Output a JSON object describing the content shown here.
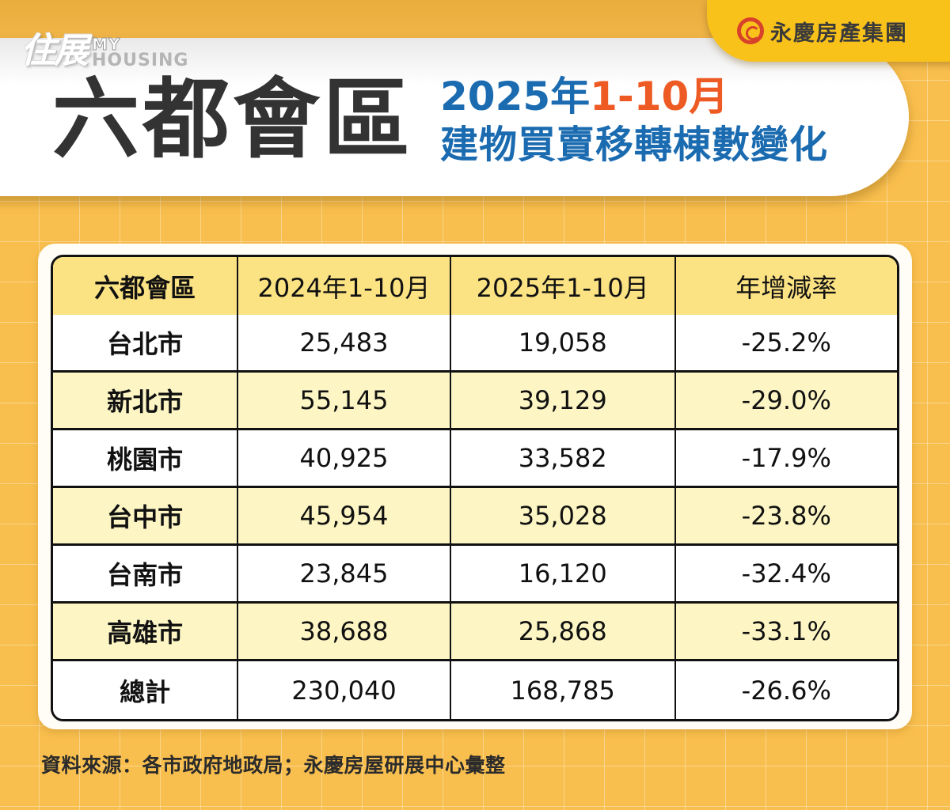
{
  "watermark": {
    "cn": "住展",
    "en_top": "MY",
    "en_bottom": "HOUSING"
  },
  "brand": {
    "name": "永慶房產集團",
    "logo_icon": "yungching-circle-arrow-icon",
    "logo_color": "#d8412a",
    "tab_color": "#f9c21a"
  },
  "header": {
    "title": "六都會區",
    "subtitle_year": "2025年",
    "subtitle_period": "1-10月",
    "subtitle_line2": "建物買賣移轉棟數變化",
    "colors": {
      "title": "#333333",
      "subtitle": "#1b6bb0",
      "accent": "#ee5a24"
    }
  },
  "table": {
    "headers": [
      "六都會區",
      "2024年1-10月",
      "2025年1-10月",
      "年增減率"
    ],
    "rows": [
      [
        "台北市",
        "25,483",
        "19,058",
        "-25.2%"
      ],
      [
        "新北市",
        "55,145",
        "39,129",
        "-29.0%"
      ],
      [
        "桃園市",
        "40,925",
        "33,582",
        "-17.9%"
      ],
      [
        "台中市",
        "45,954",
        "35,028",
        "-23.8%"
      ],
      [
        "台南市",
        "23,845",
        "16,120",
        "-32.4%"
      ],
      [
        "高雄市",
        "38,688",
        "25,868",
        "-33.1%"
      ],
      [
        "總計",
        "230,040",
        "168,785",
        "-26.6%"
      ]
    ]
  },
  "footer": {
    "source": "資料來源：各市政府地政局；永慶房屋研展中心彙整"
  },
  "chart_data": {
    "type": "table",
    "title": "六都會區 2025年1-10月 建物買賣移轉棟數變化",
    "columns": [
      "六都會區",
      "2024年1-10月",
      "2025年1-10月",
      "年增減率"
    ],
    "categories": [
      "台北市",
      "新北市",
      "桃園市",
      "台中市",
      "台南市",
      "高雄市",
      "總計"
    ],
    "series": [
      {
        "name": "2024年1-10月",
        "values": [
          25483,
          55145,
          40925,
          45954,
          23845,
          38688,
          230040
        ]
      },
      {
        "name": "2025年1-10月",
        "values": [
          19058,
          39129,
          33582,
          35028,
          16120,
          25868,
          168785
        ]
      },
      {
        "name": "年增減率(%)",
        "values": [
          -25.2,
          -29.0,
          -17.9,
          -23.8,
          -32.4,
          -33.1,
          -26.6
        ]
      }
    ],
    "source": "資料來源：各市政府地政局；永慶房屋研展中心彙整"
  }
}
